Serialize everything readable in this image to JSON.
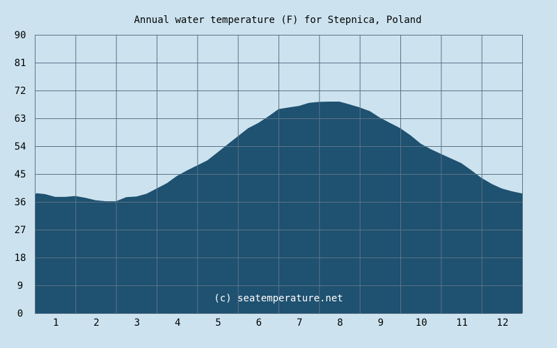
{
  "chart_data": {
    "type": "area",
    "title": "Annual water temperature (F) for Stepnica, Poland",
    "watermark": "(c) seatemperature.net",
    "xlabel": "",
    "ylabel": "",
    "x_ticks": [
      "1",
      "2",
      "3",
      "4",
      "5",
      "6",
      "7",
      "8",
      "9",
      "10",
      "11",
      "12"
    ],
    "y_ticks": [
      "0",
      "9",
      "18",
      "27",
      "36",
      "45",
      "54",
      "63",
      "72",
      "81",
      "90"
    ],
    "ylim": [
      0,
      90
    ],
    "xlim": [
      0.5,
      12.5
    ],
    "grid": true,
    "colors": {
      "background": "#cce3ef",
      "fill": "#1f5170",
      "grid": "#5a7488"
    },
    "series": [
      {
        "x": [
          0.5,
          0.55,
          0.75,
          1.0,
          1.25,
          1.5,
          1.75,
          2.0,
          2.25,
          2.5,
          2.75,
          3.0,
          3.25,
          3.5,
          3.75,
          4.0,
          4.25,
          4.5,
          4.75,
          5.0,
          5.25,
          5.5,
          5.75,
          6.0,
          6.25,
          6.5,
          6.75,
          7.0,
          7.25,
          7.5,
          7.75,
          8.0,
          8.25,
          8.5,
          8.75,
          9.0,
          9.25,
          9.5,
          9.75,
          10.0,
          10.25,
          10.5,
          10.75,
          11.0,
          11.25,
          11.5,
          11.75,
          12.0,
          12.25,
          12.5
        ],
        "values": [
          38.5,
          38.8,
          38.5,
          37.6,
          37.6,
          37.9,
          37.3,
          36.5,
          36.2,
          36.2,
          37.5,
          37.7,
          38.6,
          40.3,
          42.0,
          44.4,
          46.2,
          47.8,
          49.4,
          52.0,
          54.6,
          57.2,
          59.8,
          61.5,
          63.6,
          66.0,
          66.5,
          67.0,
          68.0,
          68.3,
          68.4,
          68.4,
          67.5,
          66.5,
          65.3,
          63.2,
          61.5,
          59.8,
          57.5,
          54.8,
          53.0,
          51.5,
          50.0,
          48.5,
          46.2,
          43.7,
          41.8,
          40.3,
          39.4,
          38.7
        ]
      }
    ]
  }
}
